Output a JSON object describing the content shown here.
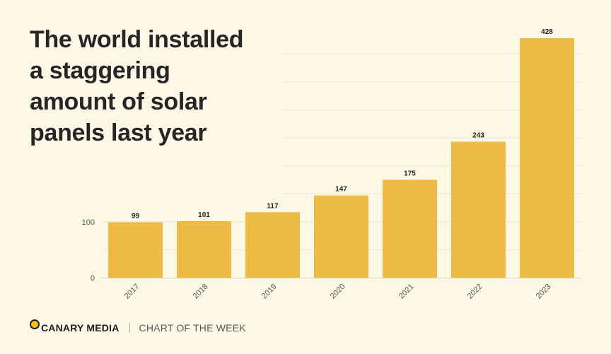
{
  "headline": {
    "lines": [
      "The world installed",
      "a staggering",
      "amount of solar",
      "panels last year"
    ]
  },
  "footer": {
    "brand": "CANARY MEDIA",
    "tagline": "CHART OF THE WEEK"
  },
  "colors": {
    "background": "#fdf8e6",
    "bar": "#efbb47",
    "text": "#262626",
    "accent": "#f2c318"
  },
  "chart_data": {
    "type": "bar",
    "title": "The world installed a staggering amount of solar panels last year",
    "categories": [
      "2017",
      "2018",
      "2019",
      "2020",
      "2021",
      "2022",
      "2023"
    ],
    "values": [
      99,
      101,
      117,
      147,
      175,
      243,
      428
    ],
    "value_labels": [
      "99",
      "101",
      "117",
      "147",
      "175",
      "243",
      "428"
    ],
    "y_ticks": [
      0,
      100
    ],
    "y_tick_labels": [
      "0",
      "100"
    ],
    "ylim": [
      0,
      428
    ],
    "xlabel": "",
    "ylabel": "",
    "grid": true
  }
}
